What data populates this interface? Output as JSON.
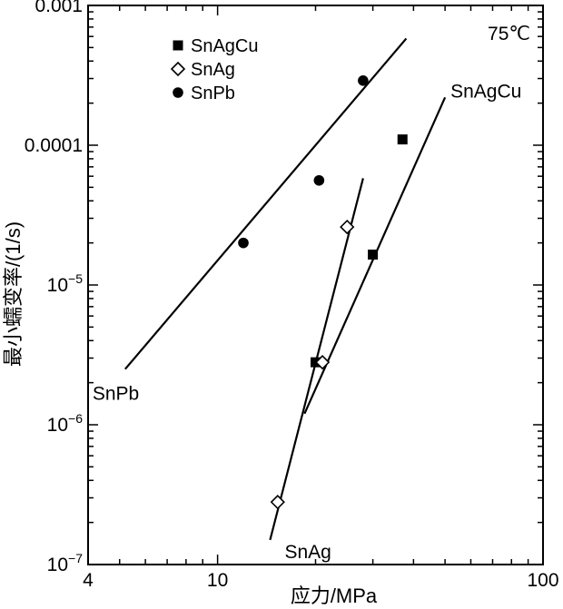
{
  "chart_data": {
    "type": "scatter",
    "title": "",
    "xlabel": "应力/MPa",
    "ylabel": "最小蠕变率/(1/s)",
    "xscale": "log",
    "yscale": "log",
    "xlim": [
      4,
      100
    ],
    "ylim": [
      1e-07,
      0.001
    ],
    "grid": false,
    "legend_position": "top-left",
    "annotation": "75℃",
    "x_ticks": [
      {
        "value": 4,
        "label": "4"
      },
      {
        "value": 10,
        "label": "10"
      },
      {
        "value": 100,
        "label": "100"
      }
    ],
    "y_ticks": [
      {
        "value": 0.001,
        "label": "0.001",
        "exponent": ""
      },
      {
        "value": 0.0001,
        "label": "0.0001",
        "exponent": ""
      },
      {
        "value": 1e-05,
        "label": "10",
        "exponent": "−5"
      },
      {
        "value": 1e-06,
        "label": "10",
        "exponent": "−6"
      },
      {
        "value": 1e-07,
        "label": "10",
        "exponent": "−7"
      }
    ],
    "series": [
      {
        "name": "SnAgCu",
        "marker": "square",
        "points": [
          {
            "x": 20.0,
            "y": 2.8e-06
          },
          {
            "x": 30.0,
            "y": 1.65e-05
          },
          {
            "x": 37.0,
            "y": 0.00011
          }
        ],
        "fit_line": [
          [
            18.5,
            1.2e-06
          ],
          [
            50,
            0.00022
          ]
        ],
        "line_label": "SnAgCu"
      },
      {
        "name": "SnAg",
        "marker": "diamond",
        "points": [
          {
            "x": 15.3,
            "y": 2.8e-07
          },
          {
            "x": 21.0,
            "y": 2.8e-06
          },
          {
            "x": 25.0,
            "y": 2.6e-05
          }
        ],
        "fit_line": [
          [
            14.5,
            1.5e-07
          ],
          [
            28,
            5.8e-05
          ]
        ],
        "line_label": "SnAg"
      },
      {
        "name": "SnPb",
        "marker": "circle",
        "points": [
          {
            "x": 12.0,
            "y": 2e-05
          },
          {
            "x": 20.5,
            "y": 5.6e-05
          },
          {
            "x": 28.0,
            "y": 0.00029
          }
        ],
        "fit_line": [
          [
            5.2,
            2.5e-06
          ],
          [
            38,
            0.00058
          ]
        ],
        "line_label": "SnPb"
      }
    ]
  }
}
